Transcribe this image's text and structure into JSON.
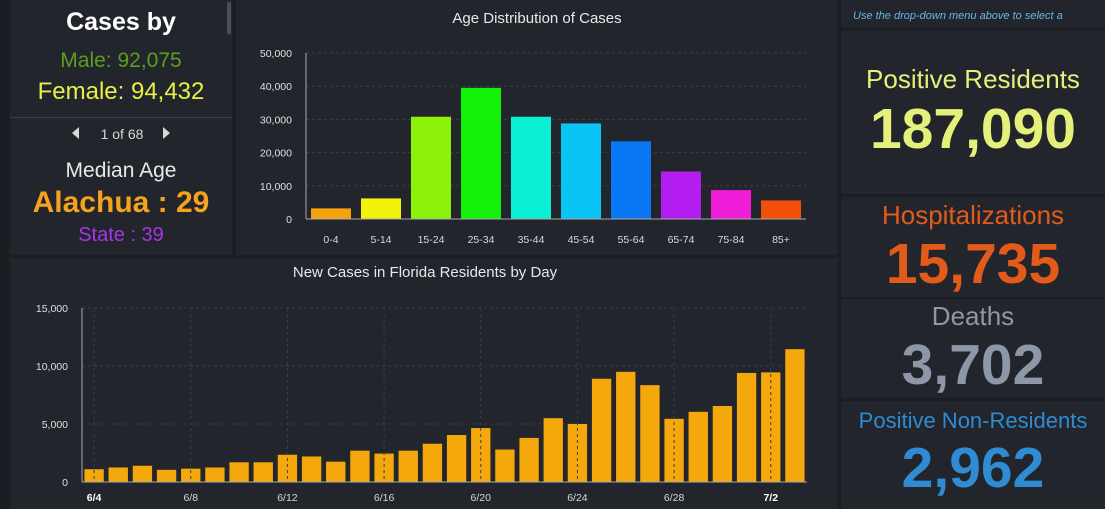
{
  "cases_by": {
    "title": "Cases by",
    "male": "Male: 92,075",
    "female": "Female: 94,432",
    "pager": "1 of 68",
    "median_age_title": "Median Age",
    "county_median": "Alachua : 29",
    "state_median": "State : 39"
  },
  "right_panel": {
    "instruction": "Use the drop-down menu above to select a",
    "positive_residents_label": "Positive Residents",
    "positive_residents_value": "187,090",
    "hospitalizations_label": "Hospitalizations",
    "hospitalizations_value": "15,735",
    "deaths_label": "Deaths",
    "deaths_value": "3,702",
    "nonresidents_label": "Positive Non-Residents",
    "nonresidents_value": "2,962"
  },
  "colors": {
    "male": "#5c9e1e",
    "female": "#e8f046",
    "county_median": "#f5a21d",
    "state_median": "#a536e8",
    "positive_residents": "#e5f07a",
    "hospitalizations": "#e35b1a",
    "deaths": "#8e97a7",
    "nonresidents": "#2f8bd2",
    "daily_bar": "#f5a80c"
  },
  "chart_data": [
    {
      "type": "bar",
      "title": "Age Distribution of Cases",
      "categories": [
        "0-4",
        "5-14",
        "15-24",
        "25-34",
        "35-44",
        "45-54",
        "55-64",
        "65-74",
        "75-84",
        "85+"
      ],
      "values": [
        3200,
        6200,
        30800,
        39500,
        30800,
        28800,
        23400,
        14300,
        8700,
        5600
      ],
      "colors": [
        "#f5a20c",
        "#f2f20a",
        "#8cf20a",
        "#12f20a",
        "#0af0d5",
        "#0ac4f5",
        "#0a78f5",
        "#b41ef0",
        "#f01ed8",
        "#f0500a"
      ],
      "ylim": [
        0,
        50000
      ],
      "yticks": [
        0,
        10000,
        20000,
        30000,
        40000,
        50000
      ],
      "ytick_labels": [
        "0",
        "10,000",
        "20,000",
        "30,000",
        "40,000",
        "50,000"
      ]
    },
    {
      "type": "bar",
      "title": "New Cases in Florida Residents by Day",
      "categories": [
        "6/4",
        "6/5",
        "6/6",
        "6/7",
        "6/8",
        "6/9",
        "6/10",
        "6/11",
        "6/12",
        "6/13",
        "6/14",
        "6/15",
        "6/16",
        "6/17",
        "6/18",
        "6/19",
        "6/20",
        "6/21",
        "6/22",
        "6/23",
        "6/24",
        "6/25",
        "6/26",
        "6/27",
        "6/28",
        "6/29",
        "6/30",
        "7/1",
        "7/2",
        "7/3"
      ],
      "values": [
        1100,
        1250,
        1400,
        1050,
        1150,
        1250,
        1700,
        1700,
        2350,
        2200,
        1750,
        2700,
        2450,
        2700,
        3300,
        4050,
        4650,
        2800,
        3800,
        5500,
        5000,
        8900,
        9500,
        8350,
        5450,
        6050,
        6550,
        9400,
        9450,
        11450
      ],
      "tick_labels": [
        "6/4",
        "6/8",
        "6/12",
        "6/16",
        "6/20",
        "6/24",
        "6/28",
        "7/2"
      ],
      "ylim": [
        0,
        15000
      ],
      "yticks": [
        0,
        5000,
        10000,
        15000
      ],
      "ytick_labels": [
        "0",
        "5,000",
        "10,000",
        "15,000"
      ]
    }
  ]
}
